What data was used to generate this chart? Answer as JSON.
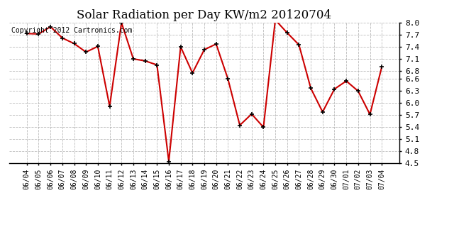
{
  "title": "Solar Radiation per Day KW/m2 20120704",
  "copyright_text": "Copyright 2012 Cartronics.com",
  "dates": [
    "06/04",
    "06/05",
    "06/06",
    "06/07",
    "06/08",
    "06/09",
    "06/10",
    "06/11",
    "06/12",
    "06/13",
    "06/14",
    "06/15",
    "06/16",
    "06/17",
    "06/18",
    "06/19",
    "06/20",
    "06/21",
    "06/22",
    "06/23",
    "06/24",
    "06/25",
    "06/26",
    "06/27",
    "06/28",
    "06/29",
    "06/30",
    "07/01",
    "07/02",
    "07/03",
    "07/04"
  ],
  "values": [
    7.73,
    7.72,
    7.9,
    7.62,
    7.48,
    7.27,
    7.41,
    5.92,
    8.0,
    7.1,
    7.05,
    6.95,
    4.55,
    7.4,
    6.75,
    7.33,
    7.47,
    6.6,
    5.45,
    5.73,
    5.4,
    8.07,
    7.75,
    7.45,
    6.37,
    5.78,
    6.35,
    6.55,
    6.3,
    5.72,
    6.9
  ],
  "line_color": "#cc0000",
  "marker_color": "#000000",
  "bg_color": "#ffffff",
  "plot_bg_color": "#ffffff",
  "grid_color": "#aaaaaa",
  "ylim": [
    4.5,
    8.0
  ],
  "yticks": [
    4.5,
    4.8,
    5.1,
    5.4,
    5.7,
    6.0,
    6.3,
    6.6,
    6.8,
    7.1,
    7.4,
    7.7,
    8.0
  ],
  "title_fontsize": 12,
  "copyright_fontsize": 7,
  "xlabel_fontsize": 7,
  "ylabel_fontsize": 8
}
